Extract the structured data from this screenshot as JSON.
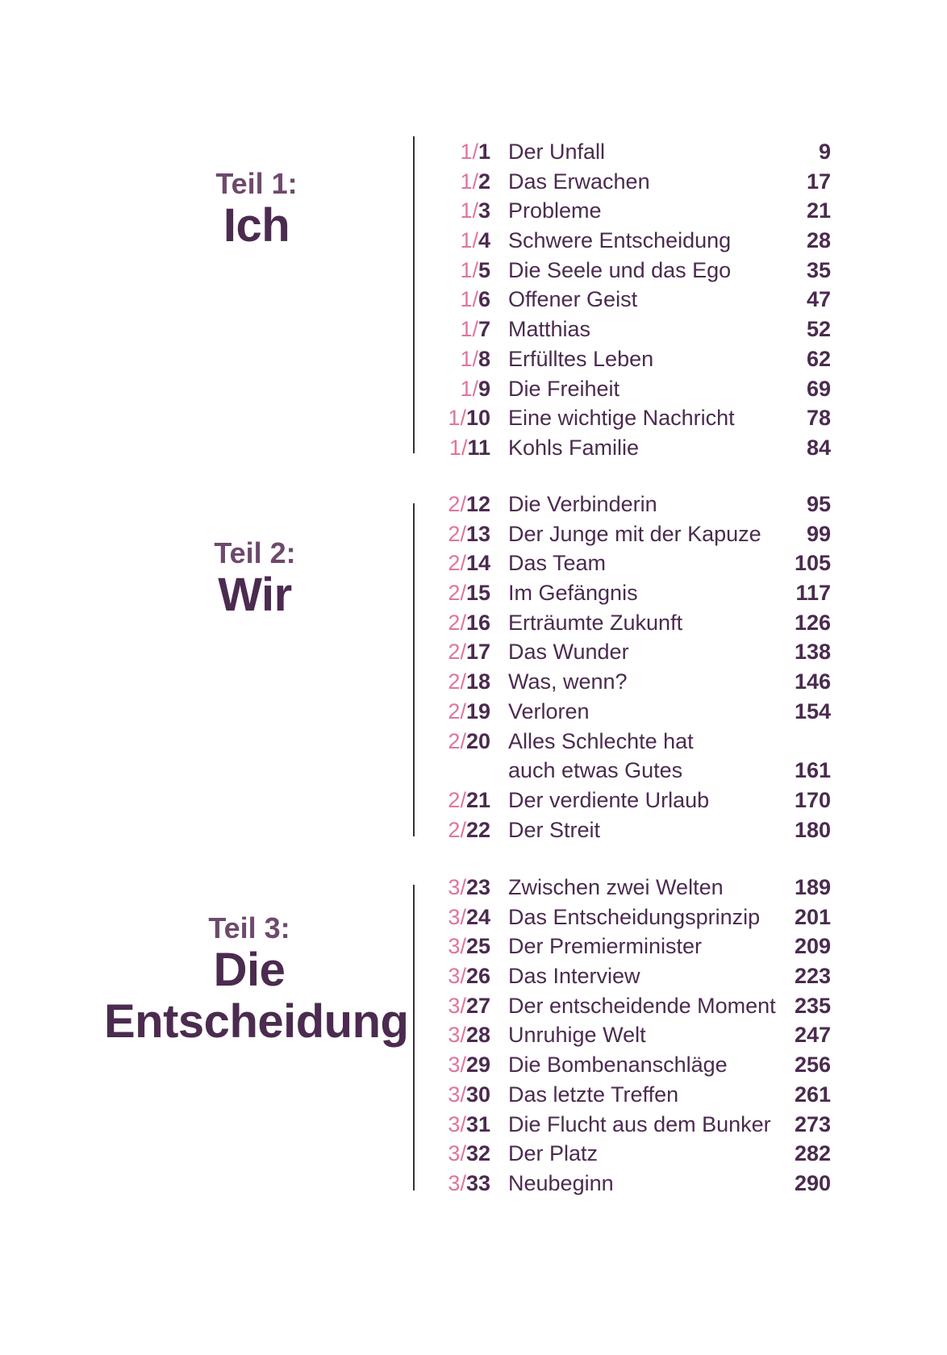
{
  "accent_color": "#e0749d",
  "text_color": "#4b2b4f",
  "parts": [
    {
      "label": "Teil 1:",
      "name_lines": [
        "Ich"
      ],
      "chapters": [
        {
          "part": "1/",
          "num": "1",
          "title": "Der Unfall",
          "page": "9"
        },
        {
          "part": "1/",
          "num": "2",
          "title": "Das Erwachen",
          "page": "17"
        },
        {
          "part": "1/",
          "num": "3",
          "title": "Probleme",
          "page": "21"
        },
        {
          "part": "1/",
          "num": "4",
          "title": "Schwere Entscheidung",
          "page": "28"
        },
        {
          "part": "1/",
          "num": "5",
          "title": "Die Seele und das Ego",
          "page": "35"
        },
        {
          "part": "1/",
          "num": "6",
          "title": "Offener Geist",
          "page": "47"
        },
        {
          "part": "1/",
          "num": "7",
          "title": "Matthias",
          "page": "52"
        },
        {
          "part": "1/",
          "num": "8",
          "title": "Erfülltes Leben",
          "page": "62"
        },
        {
          "part": "1/",
          "num": "9",
          "title": "Die Freiheit",
          "page": "69"
        },
        {
          "part": "1/",
          "num": "10",
          "title": "Eine wichtige Nachricht",
          "page": "78"
        },
        {
          "part": "1/",
          "num": "11",
          "title": "Kohls Familie",
          "page": "84"
        }
      ]
    },
    {
      "label": "Teil 2:",
      "name_lines": [
        "Wir"
      ],
      "chapters": [
        {
          "part": "2/",
          "num": "12",
          "title": "Die Verbinderin",
          "page": "95"
        },
        {
          "part": "2/",
          "num": "13",
          "title": "Der Junge mit der Kapuze",
          "page": "99"
        },
        {
          "part": "2/",
          "num": "14",
          "title": "Das Team",
          "page": "105"
        },
        {
          "part": "2/",
          "num": "15",
          "title": "Im Gefängnis",
          "page": "117"
        },
        {
          "part": "2/",
          "num": "16",
          "title": "Erträumte Zukunft",
          "page": "126"
        },
        {
          "part": "2/",
          "num": "17",
          "title": "Das Wunder",
          "page": "138"
        },
        {
          "part": "2/",
          "num": "18",
          "title": "Was, wenn?",
          "page": "146"
        },
        {
          "part": "2/",
          "num": "19",
          "title": "Verloren",
          "page": "154"
        },
        {
          "part": "2/",
          "num": "20",
          "title": "Alles Schlechte hat",
          "title2": "auch etwas Gutes",
          "page": "161"
        },
        {
          "part": "2/",
          "num": "21",
          "title": "Der verdiente Urlaub",
          "page": "170"
        },
        {
          "part": "2/",
          "num": "22",
          "title": "Der Streit",
          "page": "180"
        }
      ]
    },
    {
      "label": "Teil 3:",
      "name_lines": [
        "Die",
        "Entscheidung"
      ],
      "chapters": [
        {
          "part": "3/",
          "num": "23",
          "title": "Zwischen zwei Welten",
          "page": "189"
        },
        {
          "part": "3/",
          "num": "24",
          "title": "Das Entscheidungsprinzip",
          "page": "201"
        },
        {
          "part": "3/",
          "num": "25",
          "title": "Der Premierminister",
          "page": "209"
        },
        {
          "part": "3/",
          "num": "26",
          "title": "Das Interview",
          "page": "223"
        },
        {
          "part": "3/",
          "num": "27",
          "title": "Der entscheidende Moment",
          "page": "235"
        },
        {
          "part": "3/",
          "num": "28",
          "title": "Unruhige Welt",
          "page": "247"
        },
        {
          "part": "3/",
          "num": "29",
          "title": "Die Bombenanschläge",
          "page": "256"
        },
        {
          "part": "3/",
          "num": "30",
          "title": "Das letzte Treffen",
          "page": "261"
        },
        {
          "part": "3/",
          "num": "31",
          "title": "Die Flucht aus dem Bunker",
          "page": "273"
        },
        {
          "part": "3/",
          "num": "32",
          "title": "Der Platz",
          "page": "282"
        },
        {
          "part": "3/",
          "num": "33",
          "title": "Neubeginn",
          "page": "290"
        }
      ]
    }
  ]
}
